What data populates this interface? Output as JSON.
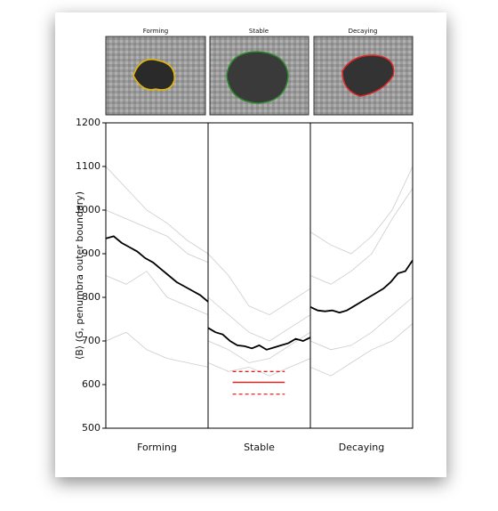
{
  "chart_data": {
    "type": "line",
    "ylabel": "⟨B⟩ (G, penumbra outer boundary)",
    "ylim": [
      500,
      1200
    ],
    "yticks": [
      500,
      600,
      700,
      800,
      900,
      1000,
      1100,
      1200
    ],
    "thumbnails": [
      {
        "title": "Forming",
        "color": "#e6b800"
      },
      {
        "title": "Stable",
        "color": "#2e8b2e"
      },
      {
        "title": "Decaying",
        "color": "#e02424"
      }
    ],
    "panels": [
      {
        "name": "Forming",
        "color": "#000000",
        "values": [
          935,
          940,
          925,
          915,
          905,
          890,
          880,
          865,
          850,
          835,
          825,
          815,
          805,
          790
        ],
        "traces": [
          [
            1000,
            980,
            960,
            940,
            900,
            880
          ],
          [
            850,
            830,
            860,
            800,
            780,
            760
          ],
          [
            1100,
            1050,
            1000,
            970,
            930,
            900
          ],
          [
            700,
            720,
            680,
            660,
            650,
            640
          ]
        ]
      },
      {
        "name": "Stable",
        "color": "#000000",
        "values": [
          730,
          720,
          715,
          700,
          690,
          688,
          683,
          690,
          680,
          685,
          690,
          695,
          705,
          700,
          708
        ],
        "traces": [
          [
            900,
            850,
            780,
            760,
            790,
            820
          ],
          [
            650,
            630,
            640,
            620,
            640,
            660
          ],
          [
            800,
            760,
            720,
            700,
            730,
            760
          ],
          [
            700,
            680,
            650,
            660,
            690,
            720
          ]
        ],
        "reference": {
          "value": 605,
          "lower": 578,
          "upper": 630,
          "color": "#e02424"
        }
      },
      {
        "name": "Decaying",
        "color": "#000000",
        "values": [
          778,
          770,
          768,
          770,
          765,
          770,
          780,
          790,
          800,
          810,
          820,
          835,
          855,
          860,
          885
        ],
        "traces": [
          [
            850,
            830,
            860,
            900,
            980,
            1050
          ],
          [
            700,
            680,
            690,
            720,
            760,
            800
          ],
          [
            950,
            920,
            900,
            940,
            1000,
            1100
          ],
          [
            640,
            620,
            650,
            680,
            700,
            740
          ]
        ]
      }
    ]
  }
}
